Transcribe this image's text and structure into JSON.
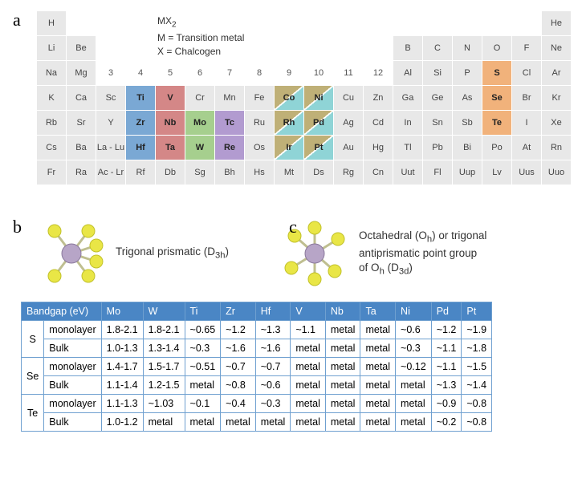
{
  "labels": {
    "a": "a",
    "b": "b",
    "c": "c"
  },
  "legend": {
    "l1": "MX",
    "l1sub": "2",
    "l2": "M = Transition metal",
    "l3": "X = Chalcogen"
  },
  "pt": {
    "colors": {
      "cell_bg": "#e8e8e8",
      "blue": "#7aa8d4",
      "red": "#d48787",
      "green": "#a6cf8e",
      "purple": "#b29bd0",
      "orange": "#f1b27b",
      "cyan": "#8fd4d6",
      "olive": "#bfb077"
    },
    "groups": [
      "3",
      "4",
      "5",
      "6",
      "7",
      "8",
      "9",
      "10",
      "11",
      "12"
    ],
    "rows": [
      [
        "H",
        "",
        "",
        "",
        "",
        "",
        "",
        "",
        "",
        "",
        "",
        "",
        "",
        "",
        "",
        "",
        "",
        "He"
      ],
      [
        "Li",
        "Be",
        "",
        "",
        "",
        "",
        "",
        "",
        "",
        "",
        "",
        "",
        "B",
        "C",
        "N",
        "O",
        "F",
        "Ne"
      ],
      [
        "Na",
        "Mg",
        "",
        "",
        "",
        "",
        "",
        "",
        "",
        "",
        "",
        "",
        "Al",
        "Si",
        "P",
        "S",
        "Cl",
        "Ar"
      ],
      [
        "K",
        "Ca",
        "Sc",
        "Ti",
        "V",
        "Cr",
        "Mn",
        "Fe",
        "Co",
        "Ni",
        "Cu",
        "Zn",
        "Ga",
        "Ge",
        "As",
        "Se",
        "Br",
        "Kr"
      ],
      [
        "Rb",
        "Sr",
        "Y",
        "Zr",
        "Nb",
        "Mo",
        "Tc",
        "Ru",
        "Rh",
        "Pd",
        "Ag",
        "Cd",
        "In",
        "Sn",
        "Sb",
        "Te",
        "I",
        "Xe"
      ],
      [
        "Cs",
        "Ba",
        "La - Lu",
        "Hf",
        "Ta",
        "W",
        "Re",
        "Os",
        "Ir",
        "Pt",
        "Au",
        "Hg",
        "Tl",
        "Pb",
        "Bi",
        "Po",
        "At",
        "Rn"
      ],
      [
        "Fr",
        "Ra",
        "Ac - Lr",
        "Rf",
        "Db",
        "Sg",
        "Bh",
        "Hs",
        "Mt",
        "Ds",
        "Rg",
        "Cn",
        "Uut",
        "Fl",
        "Uup",
        "Lv",
        "Uus",
        "Uuo"
      ]
    ],
    "highlights": {
      "Ti": "blue",
      "Zr": "blue",
      "Hf": "blue",
      "V": "red",
      "Nb": "red",
      "Ta": "red",
      "Mo": "green",
      "W": "green",
      "Tc": "purple",
      "Re": "purple",
      "Co": "split-oc",
      "Rh": "split-oc",
      "Ir": "split-oc",
      "Ni": "split-oc",
      "Pd": "split-oc",
      "Pt": "split-oc",
      "S": "orange",
      "Se": "orange",
      "Te": "orange"
    },
    "bold": [
      "Ti",
      "V",
      "Zr",
      "Nb",
      "Mo",
      "Tc",
      "Hf",
      "Ta",
      "W",
      "Re",
      "Co",
      "Ni",
      "Rh",
      "Pd",
      "Ir",
      "Pt",
      "S",
      "Se",
      "Te"
    ]
  },
  "geom": {
    "b_text1": "Trigonal prismatic (D",
    "b_text1_sub": "3h",
    "b_text1_end": ")",
    "c_text1": "Octahedral (O",
    "c_text1_sub": "h",
    "c_text1_mid": ") or trigonal",
    "c_text2a": "antiprismatic point group",
    "c_text3a": "of O",
    "c_text3a_sub": "h",
    "c_text3b": " (D",
    "c_text3b_sub": "3d",
    "c_text3c": ")",
    "ball_colors": {
      "center": "#b7a5c7",
      "ligand": "#e9e646",
      "bond": "#cfcfb0"
    }
  },
  "bandgap": {
    "header": [
      "Bandgap (eV)",
      "Mo",
      "W",
      "Ti",
      "Zr",
      "Hf",
      "V",
      "Nb",
      "Ta",
      "Ni",
      "Pd",
      "Pt"
    ],
    "header_bg": "#4a86c5",
    "border_color": "#6fa0d0",
    "chalc": [
      "S",
      "Se",
      "Te"
    ],
    "layers": [
      "monolayer",
      "Bulk"
    ],
    "rows": [
      [
        "1.8-2.1",
        "1.8-2.1",
        "~0.65",
        "~1.2",
        "~1.3",
        "~1.1",
        "metal",
        "metal",
        "~0.6",
        "~1.2",
        "~1.9"
      ],
      [
        "1.0-1.3",
        "1.3-1.4",
        "~0.3",
        "~1.6",
        "~1.6",
        "metal",
        "metal",
        "metal",
        "~0.3",
        "~1.1",
        "~1.8"
      ],
      [
        "1.4-1.7",
        "1.5-1.7",
        "~0.51",
        "~0.7",
        "~0.7",
        "metal",
        "metal",
        "metal",
        "~0.12",
        "~1.1",
        "~1.5"
      ],
      [
        "1.1-1.4",
        "1.2-1.5",
        "metal",
        "~0.8",
        "~0.6",
        "metal",
        "metal",
        "metal",
        "metal",
        "~1.3",
        "~1.4"
      ],
      [
        "1.1-1.3",
        "~1.03",
        "~0.1",
        "~0.4",
        "~0.3",
        "metal",
        "metal",
        "metal",
        "metal",
        "~0.9",
        "~0.8"
      ],
      [
        "1.0-1.2",
        "metal",
        "metal",
        "metal",
        "metal",
        "metal",
        "metal",
        "metal",
        "metal",
        "~0.2",
        "~0.8"
      ]
    ]
  }
}
